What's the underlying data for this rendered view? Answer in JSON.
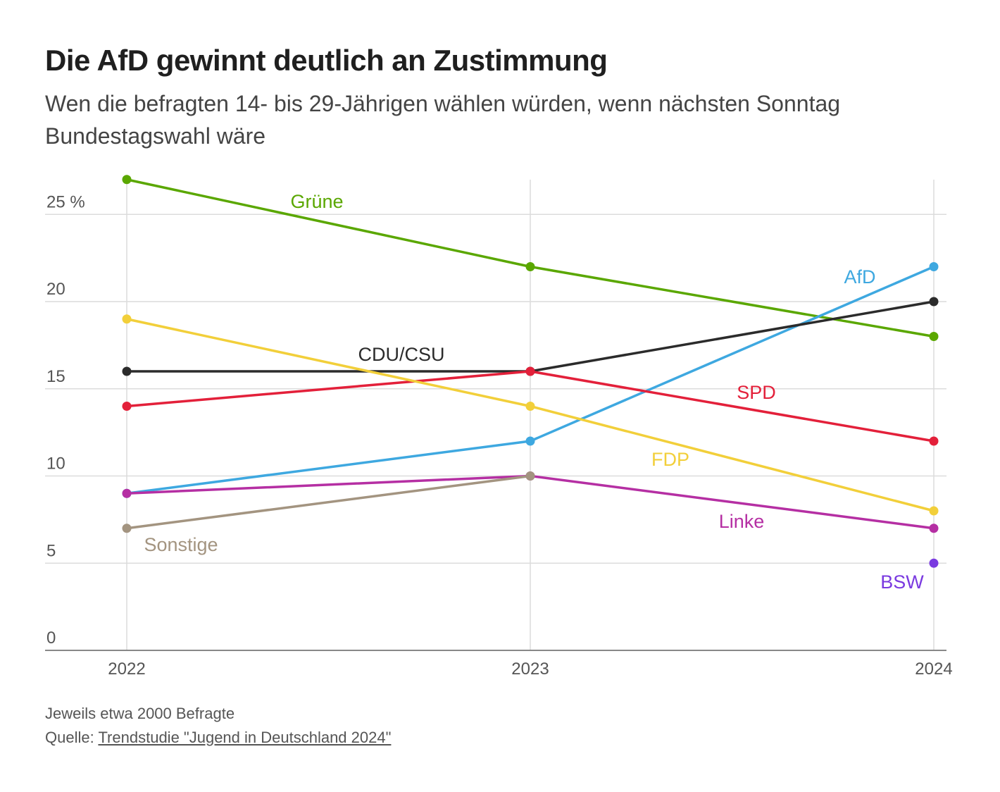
{
  "header": {
    "title": "Die AfD gewinnt deutlich an Zustimmung",
    "subtitle": "Wen die befragten 14- bis 29-Jährigen wählen würden, wenn nächsten Sonntag Bundestagswahl wäre"
  },
  "footer": {
    "note": "Jeweils etwa 2000 Befragte",
    "source_prefix": "Quelle:",
    "source_link_text": "Trendstudie \"Jugend in Deutschland 2024\""
  },
  "chart_data": {
    "type": "line",
    "title": "Die AfD gewinnt deutlich an Zustimmung",
    "subtitle": "Wen die befragten 14- bis 29-Jährigen wählen würden, wenn nächsten Sonntag Bundestagswahl wäre",
    "xlabel": "",
    "ylabel": "",
    "x": [
      "2022",
      "2023",
      "2024"
    ],
    "ylim": [
      0,
      27
    ],
    "yticks": [
      0,
      5,
      10,
      15,
      20,
      25
    ],
    "ytick_labels": [
      "0",
      "5",
      "10",
      "15",
      "20",
      "25 %"
    ],
    "grid": true,
    "legend": "inline labels",
    "series": [
      {
        "name": "Grüne",
        "color": "#5aa700",
        "values": [
          27,
          22,
          18
        ]
      },
      {
        "name": "AfD",
        "color": "#3ea8e0",
        "values": [
          9,
          12,
          22
        ]
      },
      {
        "name": "CDU/CSU",
        "color": "#2b2b2b",
        "values": [
          16,
          16,
          20
        ]
      },
      {
        "name": "SPD",
        "color": "#e3203a",
        "values": [
          14,
          16,
          12
        ]
      },
      {
        "name": "FDP",
        "color": "#f2cf3a",
        "values": [
          19,
          14,
          8
        ]
      },
      {
        "name": "Linke",
        "color": "#b52fa3",
        "values": [
          9,
          10,
          7
        ]
      },
      {
        "name": "Sonstige",
        "color": "#a39480",
        "values": [
          7,
          10,
          null
        ]
      },
      {
        "name": "BSW",
        "color": "#7a3ae0",
        "values": [
          null,
          null,
          5
        ]
      }
    ]
  }
}
